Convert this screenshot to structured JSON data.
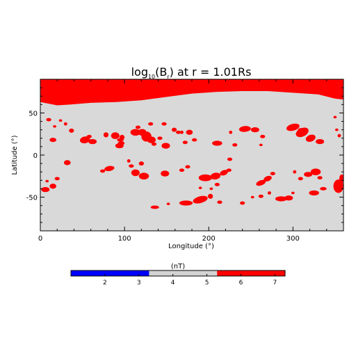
{
  "chart_data": {
    "type": "heatmap",
    "title": {
      "prefix": "log",
      "subscript": "10",
      "middle": "(B",
      "var_subscript": "r",
      "suffix": ") at r = 1.01Rs"
    },
    "xlabel": "Longitude (°)",
    "ylabel": "Latitude (°)",
    "xlim": [
      0,
      360
    ],
    "ylim": [
      -90,
      90
    ],
    "xticks": [
      0,
      100,
      200,
      300
    ],
    "yticks": [
      -50,
      0,
      50
    ],
    "background_level": "gray",
    "polar_cap": {
      "level": "red",
      "lon": [
        0,
        10,
        20,
        35,
        60,
        90,
        120,
        150,
        180,
        210,
        240,
        270,
        300,
        330,
        350,
        360
      ],
      "lat": [
        63,
        61,
        59,
        60,
        62,
        63,
        65,
        69,
        73,
        75,
        76,
        76,
        74,
        72,
        67,
        66
      ]
    },
    "active_regions": [
      {
        "lon": 10,
        "lat": 42,
        "rx": 3,
        "ry": 2,
        "angle": 0
      },
      {
        "lon": 17,
        "lat": 34,
        "rx": 2,
        "ry": 1.5,
        "angle": 0
      },
      {
        "lon": 24,
        "lat": 41,
        "rx": 2,
        "ry": 1.5,
        "angle": 0
      },
      {
        "lon": 30,
        "lat": 37,
        "rx": 2,
        "ry": 2,
        "angle": 0
      },
      {
        "lon": 37,
        "lat": 29,
        "rx": 3,
        "ry": 2.5,
        "angle": 0
      },
      {
        "lon": 15,
        "lat": 18,
        "rx": 4,
        "ry": 2.5,
        "angle": 0
      },
      {
        "lon": 53,
        "lat": 18,
        "rx": 6,
        "ry": 4,
        "angle": -10
      },
      {
        "lon": 62,
        "lat": 16,
        "rx": 5,
        "ry": 3,
        "angle": 0
      },
      {
        "lon": 58,
        "lat": 22,
        "rx": 3,
        "ry": 2,
        "angle": 0
      },
      {
        "lon": 78,
        "lat": 24,
        "rx": 3,
        "ry": 3,
        "angle": 0
      },
      {
        "lon": 89,
        "lat": 23,
        "rx": 5,
        "ry": 4,
        "angle": 0
      },
      {
        "lon": 97,
        "lat": 21,
        "rx": 3,
        "ry": 3,
        "angle": 0
      },
      {
        "lon": 95,
        "lat": 18,
        "rx": 4,
        "ry": 2,
        "angle": 0
      },
      {
        "lon": 96,
        "lat": 14,
        "rx": 4,
        "ry": 2.5,
        "angle": 0
      },
      {
        "lon": 94,
        "lat": 11,
        "rx": 5,
        "ry": 3,
        "angle": 0
      },
      {
        "lon": 116,
        "lat": 33,
        "rx": 3,
        "ry": 2,
        "angle": 0
      },
      {
        "lon": 113,
        "lat": 27,
        "rx": 6,
        "ry": 4,
        "angle": 0
      },
      {
        "lon": 121,
        "lat": 27,
        "rx": 5,
        "ry": 4,
        "angle": 0
      },
      {
        "lon": 126,
        "lat": 22,
        "rx": 6,
        "ry": 6,
        "angle": 0
      },
      {
        "lon": 132,
        "lat": 18,
        "rx": 5,
        "ry": 4,
        "angle": 0
      },
      {
        "lon": 135,
        "lat": 13,
        "rx": 3,
        "ry": 2,
        "angle": 0
      },
      {
        "lon": 142,
        "lat": 20,
        "rx": 3,
        "ry": 2,
        "angle": 0
      },
      {
        "lon": 149,
        "lat": 11,
        "rx": 5,
        "ry": 3.5,
        "angle": 0
      },
      {
        "lon": 131,
        "lat": 37,
        "rx": 3,
        "ry": 2,
        "angle": 0
      },
      {
        "lon": 147,
        "lat": 37,
        "rx": 3,
        "ry": 2,
        "angle": 0
      },
      {
        "lon": 159,
        "lat": 30,
        "rx": 3,
        "ry": 2.5,
        "angle": 0
      },
      {
        "lon": 164,
        "lat": 27,
        "rx": 3,
        "ry": 2,
        "angle": 0
      },
      {
        "lon": 168,
        "lat": 27,
        "rx": 2,
        "ry": 2,
        "angle": 0
      },
      {
        "lon": 177,
        "lat": 27,
        "rx": 4,
        "ry": 3,
        "angle": 0
      },
      {
        "lon": 183,
        "lat": 18,
        "rx": 3,
        "ry": 2,
        "angle": 0
      },
      {
        "lon": 172,
        "lat": 15,
        "rx": 3,
        "ry": 2,
        "angle": 0
      },
      {
        "lon": 210,
        "lat": 14,
        "rx": 6,
        "ry": 3,
        "angle": 0
      },
      {
        "lon": 226,
        "lat": 27,
        "rx": 2,
        "ry": 2,
        "angle": 0
      },
      {
        "lon": 231,
        "lat": 12,
        "rx": 3,
        "ry": 2,
        "angle": 0
      },
      {
        "lon": 243,
        "lat": 31,
        "rx": 7,
        "ry": 3.5,
        "angle": -5
      },
      {
        "lon": 255,
        "lat": 30,
        "rx": 5,
        "ry": 3,
        "angle": 0
      },
      {
        "lon": 264,
        "lat": 22,
        "rx": 3,
        "ry": 2,
        "angle": 0
      },
      {
        "lon": 262,
        "lat": 12,
        "rx": 2,
        "ry": 1.5,
        "angle": 0
      },
      {
        "lon": 300,
        "lat": 33,
        "rx": 8,
        "ry": 4,
        "angle": -15
      },
      {
        "lon": 311,
        "lat": 27,
        "rx": 8,
        "ry": 5,
        "angle": -25
      },
      {
        "lon": 321,
        "lat": 20,
        "rx": 6,
        "ry": 4,
        "angle": -20
      },
      {
        "lon": 332,
        "lat": 16,
        "rx": 5,
        "ry": 3,
        "angle": 0
      },
      {
        "lon": 309,
        "lat": 30,
        "rx": 3,
        "ry": 2,
        "angle": 0
      },
      {
        "lon": 355,
        "lat": 23,
        "rx": 2,
        "ry": 2,
        "angle": 0
      },
      {
        "lon": 352,
        "lat": 30,
        "rx": 2,
        "ry": 1.5,
        "angle": 0
      },
      {
        "lon": 350,
        "lat": 45,
        "rx": 2,
        "ry": 1.5,
        "angle": 0
      },
      {
        "lon": 32,
        "lat": -9,
        "rx": 4,
        "ry": 3,
        "angle": 0
      },
      {
        "lon": 82,
        "lat": -16,
        "rx": 6,
        "ry": 3,
        "angle": -10
      },
      {
        "lon": 74,
        "lat": -19,
        "rx": 3,
        "ry": 2,
        "angle": 0
      },
      {
        "lon": 108,
        "lat": -13,
        "rx": 3,
        "ry": 2,
        "angle": 0
      },
      {
        "lon": 120,
        "lat": -10,
        "rx": 3,
        "ry": 2.5,
        "angle": 0
      },
      {
        "lon": 105,
        "lat": -7,
        "rx": 2,
        "ry": 2,
        "angle": 0
      },
      {
        "lon": 113,
        "lat": -21,
        "rx": 5,
        "ry": 4,
        "angle": 0
      },
      {
        "lon": 123,
        "lat": -25,
        "rx": 6,
        "ry": 4,
        "angle": 0
      },
      {
        "lon": 148,
        "lat": -22,
        "rx": 5,
        "ry": 3.5,
        "angle": 0
      },
      {
        "lon": 168,
        "lat": -18,
        "rx": 3,
        "ry": 2,
        "angle": 0
      },
      {
        "lon": 175,
        "lat": -14,
        "rx": 3,
        "ry": 2,
        "angle": 0
      },
      {
        "lon": 225,
        "lat": -5,
        "rx": 3,
        "ry": 2,
        "angle": 0
      },
      {
        "lon": 196,
        "lat": -27,
        "rx": 8,
        "ry": 4,
        "angle": 0
      },
      {
        "lon": 208,
        "lat": -25,
        "rx": 6,
        "ry": 4,
        "angle": -10
      },
      {
        "lon": 218,
        "lat": -21,
        "rx": 5,
        "ry": 3,
        "angle": -20
      },
      {
        "lon": 224,
        "lat": -18,
        "rx": 3,
        "ry": 2,
        "angle": 0
      },
      {
        "lon": 210,
        "lat": -35,
        "rx": 3,
        "ry": 2,
        "angle": 0
      },
      {
        "lon": 203,
        "lat": -40,
        "rx": 2,
        "ry": 1.5,
        "angle": 0
      },
      {
        "lon": 190,
        "lat": -39,
        "rx": 2,
        "ry": 1.5,
        "angle": 0
      },
      {
        "lon": 173,
        "lat": -57,
        "rx": 8,
        "ry": 3,
        "angle": 0
      },
      {
        "lon": 190,
        "lat": -53,
        "rx": 9,
        "ry": 4,
        "angle": -15
      },
      {
        "lon": 202,
        "lat": -49,
        "rx": 3,
        "ry": 3,
        "angle": 0
      },
      {
        "lon": 136,
        "lat": -62,
        "rx": 5,
        "ry": 2,
        "angle": 0
      },
      {
        "lon": 152,
        "lat": -58,
        "rx": 2,
        "ry": 1.5,
        "angle": 0
      },
      {
        "lon": 213,
        "lat": -56,
        "rx": 3,
        "ry": 2,
        "angle": 0
      },
      {
        "lon": 240,
        "lat": -57,
        "rx": 3,
        "ry": 2,
        "angle": 0
      },
      {
        "lon": 252,
        "lat": -50,
        "rx": 2,
        "ry": 1.5,
        "angle": 0
      },
      {
        "lon": 262,
        "lat": -33,
        "rx": 6,
        "ry": 3,
        "angle": -20
      },
      {
        "lon": 270,
        "lat": -28,
        "rx": 5,
        "ry": 3,
        "angle": -20
      },
      {
        "lon": 276,
        "lat": -22,
        "rx": 3,
        "ry": 2,
        "angle": 0
      },
      {
        "lon": 262,
        "lat": -49,
        "rx": 3,
        "ry": 2,
        "angle": 0
      },
      {
        "lon": 272,
        "lat": -45,
        "rx": 2,
        "ry": 2,
        "angle": 0
      },
      {
        "lon": 286,
        "lat": -52,
        "rx": 7,
        "ry": 3,
        "angle": 0
      },
      {
        "lon": 295,
        "lat": -51,
        "rx": 5,
        "ry": 3,
        "angle": 0
      },
      {
        "lon": 300,
        "lat": -45,
        "rx": 2,
        "ry": 1.5,
        "angle": 0
      },
      {
        "lon": 302,
        "lat": -20,
        "rx": 2,
        "ry": 2,
        "angle": 0
      },
      {
        "lon": 309,
        "lat": -28,
        "rx": 3,
        "ry": 2,
        "angle": 0
      },
      {
        "lon": 318,
        "lat": -23,
        "rx": 5,
        "ry": 3,
        "angle": 0
      },
      {
        "lon": 327,
        "lat": -20,
        "rx": 6,
        "ry": 4,
        "angle": 0
      },
      {
        "lon": 332,
        "lat": -27,
        "rx": 3,
        "ry": 2,
        "angle": 0
      },
      {
        "lon": 325,
        "lat": -45,
        "rx": 6,
        "ry": 3,
        "angle": 0
      },
      {
        "lon": 336,
        "lat": -40,
        "rx": 4,
        "ry": 2,
        "angle": 0
      },
      {
        "lon": 354,
        "lat": -37,
        "rx": 6,
        "ry": 8,
        "angle": 0
      },
      {
        "lon": 358,
        "lat": -28,
        "rx": 3,
        "ry": 5,
        "angle": 0
      },
      {
        "lon": 6,
        "lat": -41,
        "rx": 5,
        "ry": 3,
        "angle": 0
      },
      {
        "lon": 15,
        "lat": -37,
        "rx": 4,
        "ry": 3,
        "angle": 0
      },
      {
        "lon": 20,
        "lat": -28,
        "rx": 3,
        "ry": 2,
        "angle": 0
      },
      {
        "lon": 8,
        "lat": -31,
        "rx": 2,
        "ry": 1.5,
        "angle": 0
      }
    ],
    "colorbar": {
      "label": "(nT)",
      "range": [
        1,
        7.3
      ],
      "ticks": [
        2,
        3,
        4,
        5,
        6,
        7
      ],
      "segments": [
        {
          "from": 1,
          "to": 3.3,
          "color": "#0000ff"
        },
        {
          "from": 3.3,
          "to": 5.3,
          "color": "#d3d3d3"
        },
        {
          "from": 5.3,
          "to": 7.3,
          "color": "#ff0000"
        }
      ]
    },
    "colors": {
      "background": "#d9d9d9",
      "active": "#ff0000",
      "low": "#0000ff"
    }
  }
}
